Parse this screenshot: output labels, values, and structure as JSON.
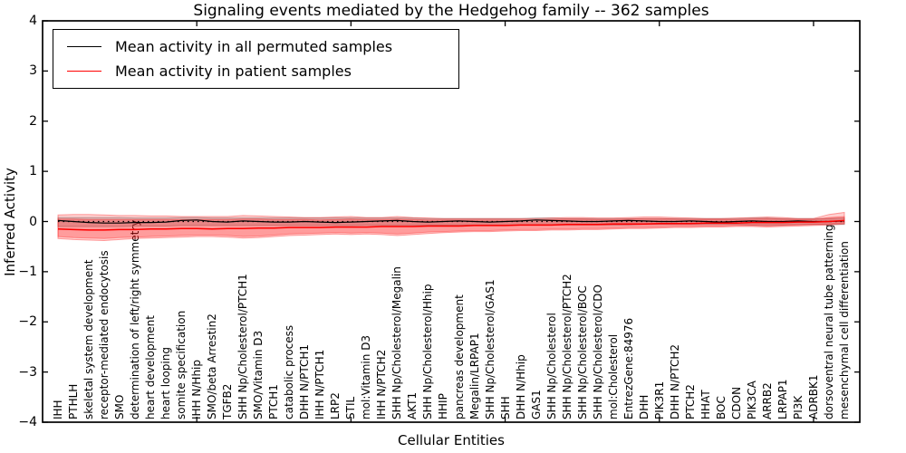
{
  "figure": {
    "title": "Signaling events mediated by the Hedgehog family -- 362 samples",
    "xlabel": "Cellular Entities",
    "ylabel": "Inferred Activity",
    "sample_count": "362"
  },
  "legend": {
    "items": [
      {
        "label": "Mean activity in all permuted samples",
        "color": "#000000"
      },
      {
        "label": "Mean activity in patient samples",
        "color": "#ff0000"
      }
    ]
  },
  "chart_data": {
    "type": "line",
    "title": "Signaling events mediated by the Hedgehog family -- 362 samples",
    "xlabel": "Cellular Entities",
    "ylabel": "Inferred Activity",
    "ylim": [
      -4,
      4
    ],
    "xlim": [
      0,
      53
    ],
    "grid": false,
    "legend_position": "upper left",
    "yticks": [
      4,
      3,
      2,
      1,
      0,
      -1,
      -2,
      -3,
      -4
    ],
    "ytick_labels": [
      "4",
      "3",
      "2",
      "1",
      "0",
      "−1",
      "−2",
      "−3",
      "−4"
    ],
    "xticks": [
      10,
      20,
      30,
      40,
      50
    ],
    "zero_line": {
      "y": 0,
      "style": "dotted",
      "color": "#000000"
    },
    "categories": [
      "IHH",
      "PTHLH",
      "skeletal system development",
      "receptor-mediated endocytosis",
      "SMO",
      "determination of left/right symmetry",
      "heart development",
      "heart looping",
      "somite specification",
      "IHH N/Hhip",
      "SMO/beta Arrestin2",
      "TGFB2",
      "SHH Np/Cholesterol/PTCH1",
      "SMO/Vitamin D3",
      "PTCH1",
      "catabolic process",
      "DHH N/PTCH1",
      "IHH N/PTCH1",
      "LRP2",
      "STIL",
      "mol:Vitamin D3",
      "IHH N/PTCH2",
      "SHH Np/Cholesterol/Megalin",
      "AKT1",
      "SHH Np/Cholesterol/Hhip",
      "HHIP",
      "pancreas development",
      "Megalin/LRPAP1",
      "SHH Np/Cholesterol/GAS1",
      "SHH",
      "DHH N/Hhip",
      "GAS1",
      "SHH Np/Cholesterol",
      "SHH Np/Cholesterol/PTCH2",
      "SHH Np/Cholesterol/BOC",
      "SHH Np/Cholesterol/CDO",
      "mol:Cholesterol",
      "EntrezGene:84976",
      "DHH",
      "PIK3R1",
      "DHH N/PTCH2",
      "PTCH2",
      "HHAT",
      "BOC",
      "CDON",
      "PIK3CA",
      "ARRB2",
      "LRPAP1",
      "PI3K",
      "ADRBK1",
      "dorsoventral neural tube patterning",
      "mesenchymal cell differentiation"
    ],
    "series": [
      {
        "name": "Mean activity in all permuted samples",
        "color": "#000000",
        "values": [
          0.02,
          0.0,
          -0.02,
          -0.03,
          -0.03,
          -0.02,
          -0.02,
          -0.01,
          0.02,
          0.03,
          0.0,
          -0.01,
          0.01,
          0.0,
          -0.01,
          -0.01,
          0.0,
          -0.01,
          -0.02,
          -0.01,
          0.0,
          0.01,
          0.02,
          0.0,
          -0.01,
          0.0,
          0.01,
          0.0,
          -0.01,
          0.0,
          0.01,
          0.03,
          0.02,
          0.01,
          0.0,
          0.0,
          0.01,
          0.02,
          0.01,
          0.0,
          0.0,
          0.01,
          0.0,
          -0.01,
          0.0,
          0.01,
          0.0,
          0.0,
          0.01,
          0.0,
          0.0,
          0.01
        ]
      },
      {
        "name": "Mean activity in patient samples",
        "color": "#ff0000",
        "values": [
          -0.15,
          -0.16,
          -0.17,
          -0.17,
          -0.16,
          -0.16,
          -0.15,
          -0.15,
          -0.14,
          -0.14,
          -0.15,
          -0.14,
          -0.14,
          -0.13,
          -0.13,
          -0.12,
          -0.12,
          -0.12,
          -0.11,
          -0.11,
          -0.11,
          -0.1,
          -0.1,
          -0.1,
          -0.09,
          -0.09,
          -0.09,
          -0.08,
          -0.08,
          -0.08,
          -0.07,
          -0.07,
          -0.07,
          -0.06,
          -0.06,
          -0.06,
          -0.05,
          -0.05,
          -0.05,
          -0.04,
          -0.04,
          -0.04,
          -0.03,
          -0.03,
          -0.03,
          -0.02,
          -0.02,
          -0.02,
          -0.01,
          -0.01,
          0.0,
          0.02
        ]
      }
    ],
    "bands": [
      {
        "name": "permuted-std-band",
        "fill": "rgba(130,130,130,0.30)",
        "edge": "rgba(110,110,110,0.45)",
        "hi": [
          0.08,
          0.08,
          0.08,
          0.08,
          0.08,
          0.07,
          0.07,
          0.07,
          0.08,
          0.08,
          0.07,
          0.07,
          0.07,
          0.07,
          0.07,
          0.07,
          0.07,
          0.07,
          0.07,
          0.07,
          0.07,
          0.07,
          0.07,
          0.07,
          0.06,
          0.06,
          0.06,
          0.06,
          0.06,
          0.06,
          0.06,
          0.07,
          0.07,
          0.06,
          0.06,
          0.06,
          0.06,
          0.06,
          0.06,
          0.06,
          0.06,
          0.06,
          0.06,
          0.06,
          0.06,
          0.07,
          0.07,
          0.06,
          0.06,
          0.06,
          0.06,
          0.07
        ],
        "lo": [
          -0.1,
          -0.1,
          -0.1,
          -0.1,
          -0.1,
          -0.09,
          -0.09,
          -0.09,
          -0.08,
          -0.08,
          -0.08,
          -0.08,
          -0.08,
          -0.08,
          -0.08,
          -0.08,
          -0.08,
          -0.08,
          -0.08,
          -0.08,
          -0.07,
          -0.07,
          -0.07,
          -0.07,
          -0.07,
          -0.07,
          -0.07,
          -0.07,
          -0.07,
          -0.07,
          -0.07,
          -0.07,
          -0.07,
          -0.07,
          -0.07,
          -0.07,
          -0.07,
          -0.07,
          -0.06,
          -0.06,
          -0.06,
          -0.06,
          -0.06,
          -0.06,
          -0.06,
          -0.07,
          -0.07,
          -0.07,
          -0.06,
          -0.06,
          -0.06,
          -0.06
        ]
      },
      {
        "name": "patient-outer-band",
        "fill": "rgba(255,0,0,0.18)",
        "edge": "rgba(255,0,0,0.35)",
        "hi": [
          0.13,
          0.14,
          0.14,
          0.13,
          0.12,
          0.12,
          0.11,
          0.11,
          0.1,
          0.1,
          0.1,
          0.1,
          0.12,
          0.11,
          0.1,
          0.09,
          0.08,
          0.08,
          0.09,
          0.1,
          0.08,
          0.08,
          0.1,
          0.08,
          0.07,
          0.06,
          0.06,
          0.06,
          0.06,
          0.06,
          0.06,
          0.06,
          0.07,
          0.08,
          0.08,
          0.07,
          0.07,
          0.08,
          0.09,
          0.09,
          0.08,
          0.07,
          0.06,
          0.06,
          0.07,
          0.08,
          0.09,
          0.08,
          0.06,
          0.06,
          0.14,
          0.18
        ],
        "lo": [
          -0.34,
          -0.36,
          -0.37,
          -0.38,
          -0.36,
          -0.34,
          -0.33,
          -0.32,
          -0.31,
          -0.3,
          -0.3,
          -0.31,
          -0.33,
          -0.32,
          -0.3,
          -0.28,
          -0.27,
          -0.26,
          -0.25,
          -0.26,
          -0.25,
          -0.26,
          -0.28,
          -0.26,
          -0.24,
          -0.22,
          -0.21,
          -0.2,
          -0.2,
          -0.19,
          -0.18,
          -0.18,
          -0.17,
          -0.17,
          -0.16,
          -0.16,
          -0.15,
          -0.14,
          -0.14,
          -0.13,
          -0.12,
          -0.12,
          -0.11,
          -0.11,
          -0.1,
          -0.1,
          -0.11,
          -0.1,
          -0.09,
          -0.08,
          -0.07,
          -0.05
        ]
      },
      {
        "name": "patient-inner-band",
        "fill": "rgba(255,0,0,0.25)",
        "edge": "rgba(255,0,0,0.30)",
        "hi": [
          0.05,
          0.05,
          0.04,
          0.04,
          0.04,
          0.04,
          0.04,
          0.04,
          0.04,
          0.04,
          0.04,
          0.04,
          0.05,
          0.05,
          0.04,
          0.04,
          0.04,
          0.03,
          0.04,
          0.05,
          0.04,
          0.04,
          0.05,
          0.04,
          0.03,
          0.03,
          0.03,
          0.03,
          0.03,
          0.03,
          0.03,
          0.03,
          0.04,
          0.05,
          0.05,
          0.04,
          0.04,
          0.05,
          0.06,
          0.06,
          0.05,
          0.04,
          0.04,
          0.04,
          0.04,
          0.05,
          0.06,
          0.05,
          0.04,
          0.04,
          0.08,
          0.1
        ],
        "lo": [
          -0.3,
          -0.32,
          -0.33,
          -0.34,
          -0.32,
          -0.31,
          -0.3,
          -0.29,
          -0.28,
          -0.27,
          -0.27,
          -0.28,
          -0.3,
          -0.29,
          -0.27,
          -0.25,
          -0.24,
          -0.23,
          -0.22,
          -0.23,
          -0.22,
          -0.23,
          -0.25,
          -0.23,
          -0.21,
          -0.2,
          -0.19,
          -0.18,
          -0.18,
          -0.17,
          -0.16,
          -0.16,
          -0.15,
          -0.15,
          -0.14,
          -0.14,
          -0.13,
          -0.12,
          -0.12,
          -0.11,
          -0.1,
          -0.1,
          -0.09,
          -0.09,
          -0.08,
          -0.08,
          -0.09,
          -0.08,
          -0.07,
          -0.06,
          -0.05,
          -0.03
        ]
      }
    ]
  }
}
